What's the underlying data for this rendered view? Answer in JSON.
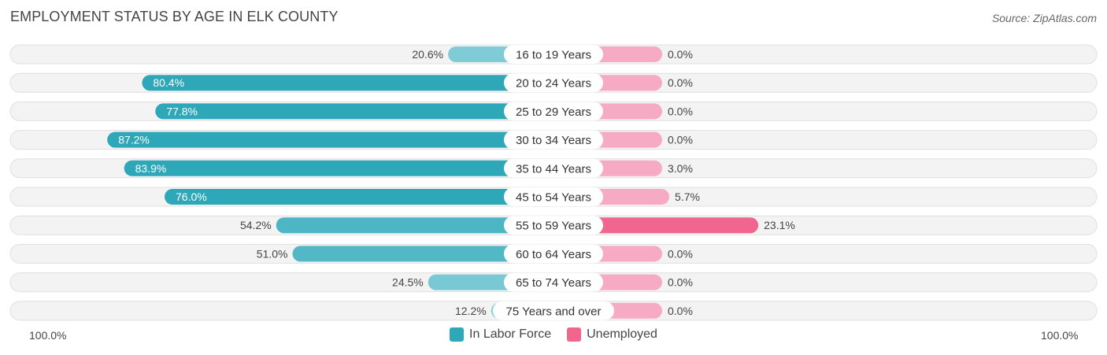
{
  "header": {
    "title": "EMPLOYMENT STATUS BY AGE IN ELK COUNTY",
    "source": "Source: ZipAtlas.com"
  },
  "axis": {
    "left_label": "100.0%",
    "right_label": "100.0%"
  },
  "legend": {
    "items": [
      {
        "label": "In Labor Force",
        "color": "#2ea8b8"
      },
      {
        "label": "Unemployed",
        "color": "#f0668f"
      }
    ]
  },
  "chart_data": {
    "type": "bar",
    "title": "EMPLOYMENT STATUS BY AGE IN ELK COUNTY",
    "orientation": "horizontal-diverging",
    "categories": [
      "16 to 19 Years",
      "20 to 24 Years",
      "25 to 29 Years",
      "30 to 34 Years",
      "35 to 44 Years",
      "45 to 54 Years",
      "55 to 59 Years",
      "60 to 64 Years",
      "65 to 74 Years",
      "75 Years and over"
    ],
    "series": [
      {
        "name": "In Labor Force",
        "values": [
          20.6,
          80.4,
          77.8,
          87.2,
          83.9,
          76.0,
          54.2,
          51.0,
          24.5,
          12.2
        ],
        "labels": [
          "20.6%",
          "80.4%",
          "77.8%",
          "87.2%",
          "83.9%",
          "76.0%",
          "54.2%",
          "51.0%",
          "24.5%",
          "12.2%"
        ]
      },
      {
        "name": "Unemployed",
        "values": [
          0.0,
          0.0,
          0.0,
          0.0,
          3.0,
          5.7,
          23.1,
          0.0,
          0.0,
          0.0
        ],
        "labels": [
          "0.0%",
          "0.0%",
          "0.0%",
          "0.0%",
          "3.0%",
          "5.7%",
          "23.1%",
          "0.0%",
          "0.0%",
          "0.0%"
        ]
      }
    ],
    "xlim": [
      -100,
      100
    ],
    "legend_position": "bottom-center"
  }
}
